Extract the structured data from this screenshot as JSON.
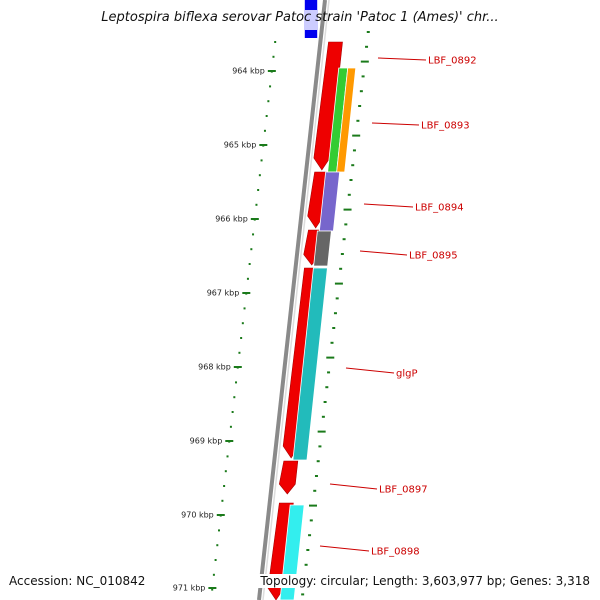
{
  "title": "Leptospira biflexa serovar Patoc strain 'Patoc 1 (Ames)' chr...",
  "footer": {
    "accession": "Accession: NC_010842",
    "topology": "Topology: circular; Length: 3,603,977 bp; Genes: 3,318"
  },
  "ticks": [
    "964 kbp",
    "965 kbp",
    "966 kbp",
    "967 kbp",
    "968 kbp",
    "969 kbp",
    "970 kbp",
    "971 kbp"
  ],
  "genes": [
    "LBF_0892",
    "LBF_0893",
    "LBF_0894",
    "LBF_0895",
    "glgP",
    "LBF_0897",
    "LBF_0898"
  ],
  "colors": {
    "backbone": "#8a8a8a",
    "forward_cds": "#ee0000",
    "label": "#cc0000",
    "tick": "#1a7a1a",
    "cog_green": "#33cc33",
    "cog_orange": "#ff9900",
    "cog_purple": "#7766cc",
    "cog_gray": "#666666",
    "cog_teal": "#22bbbb",
    "cog_cyan": "#33eeee",
    "cog_blue": "#0000ee"
  }
}
